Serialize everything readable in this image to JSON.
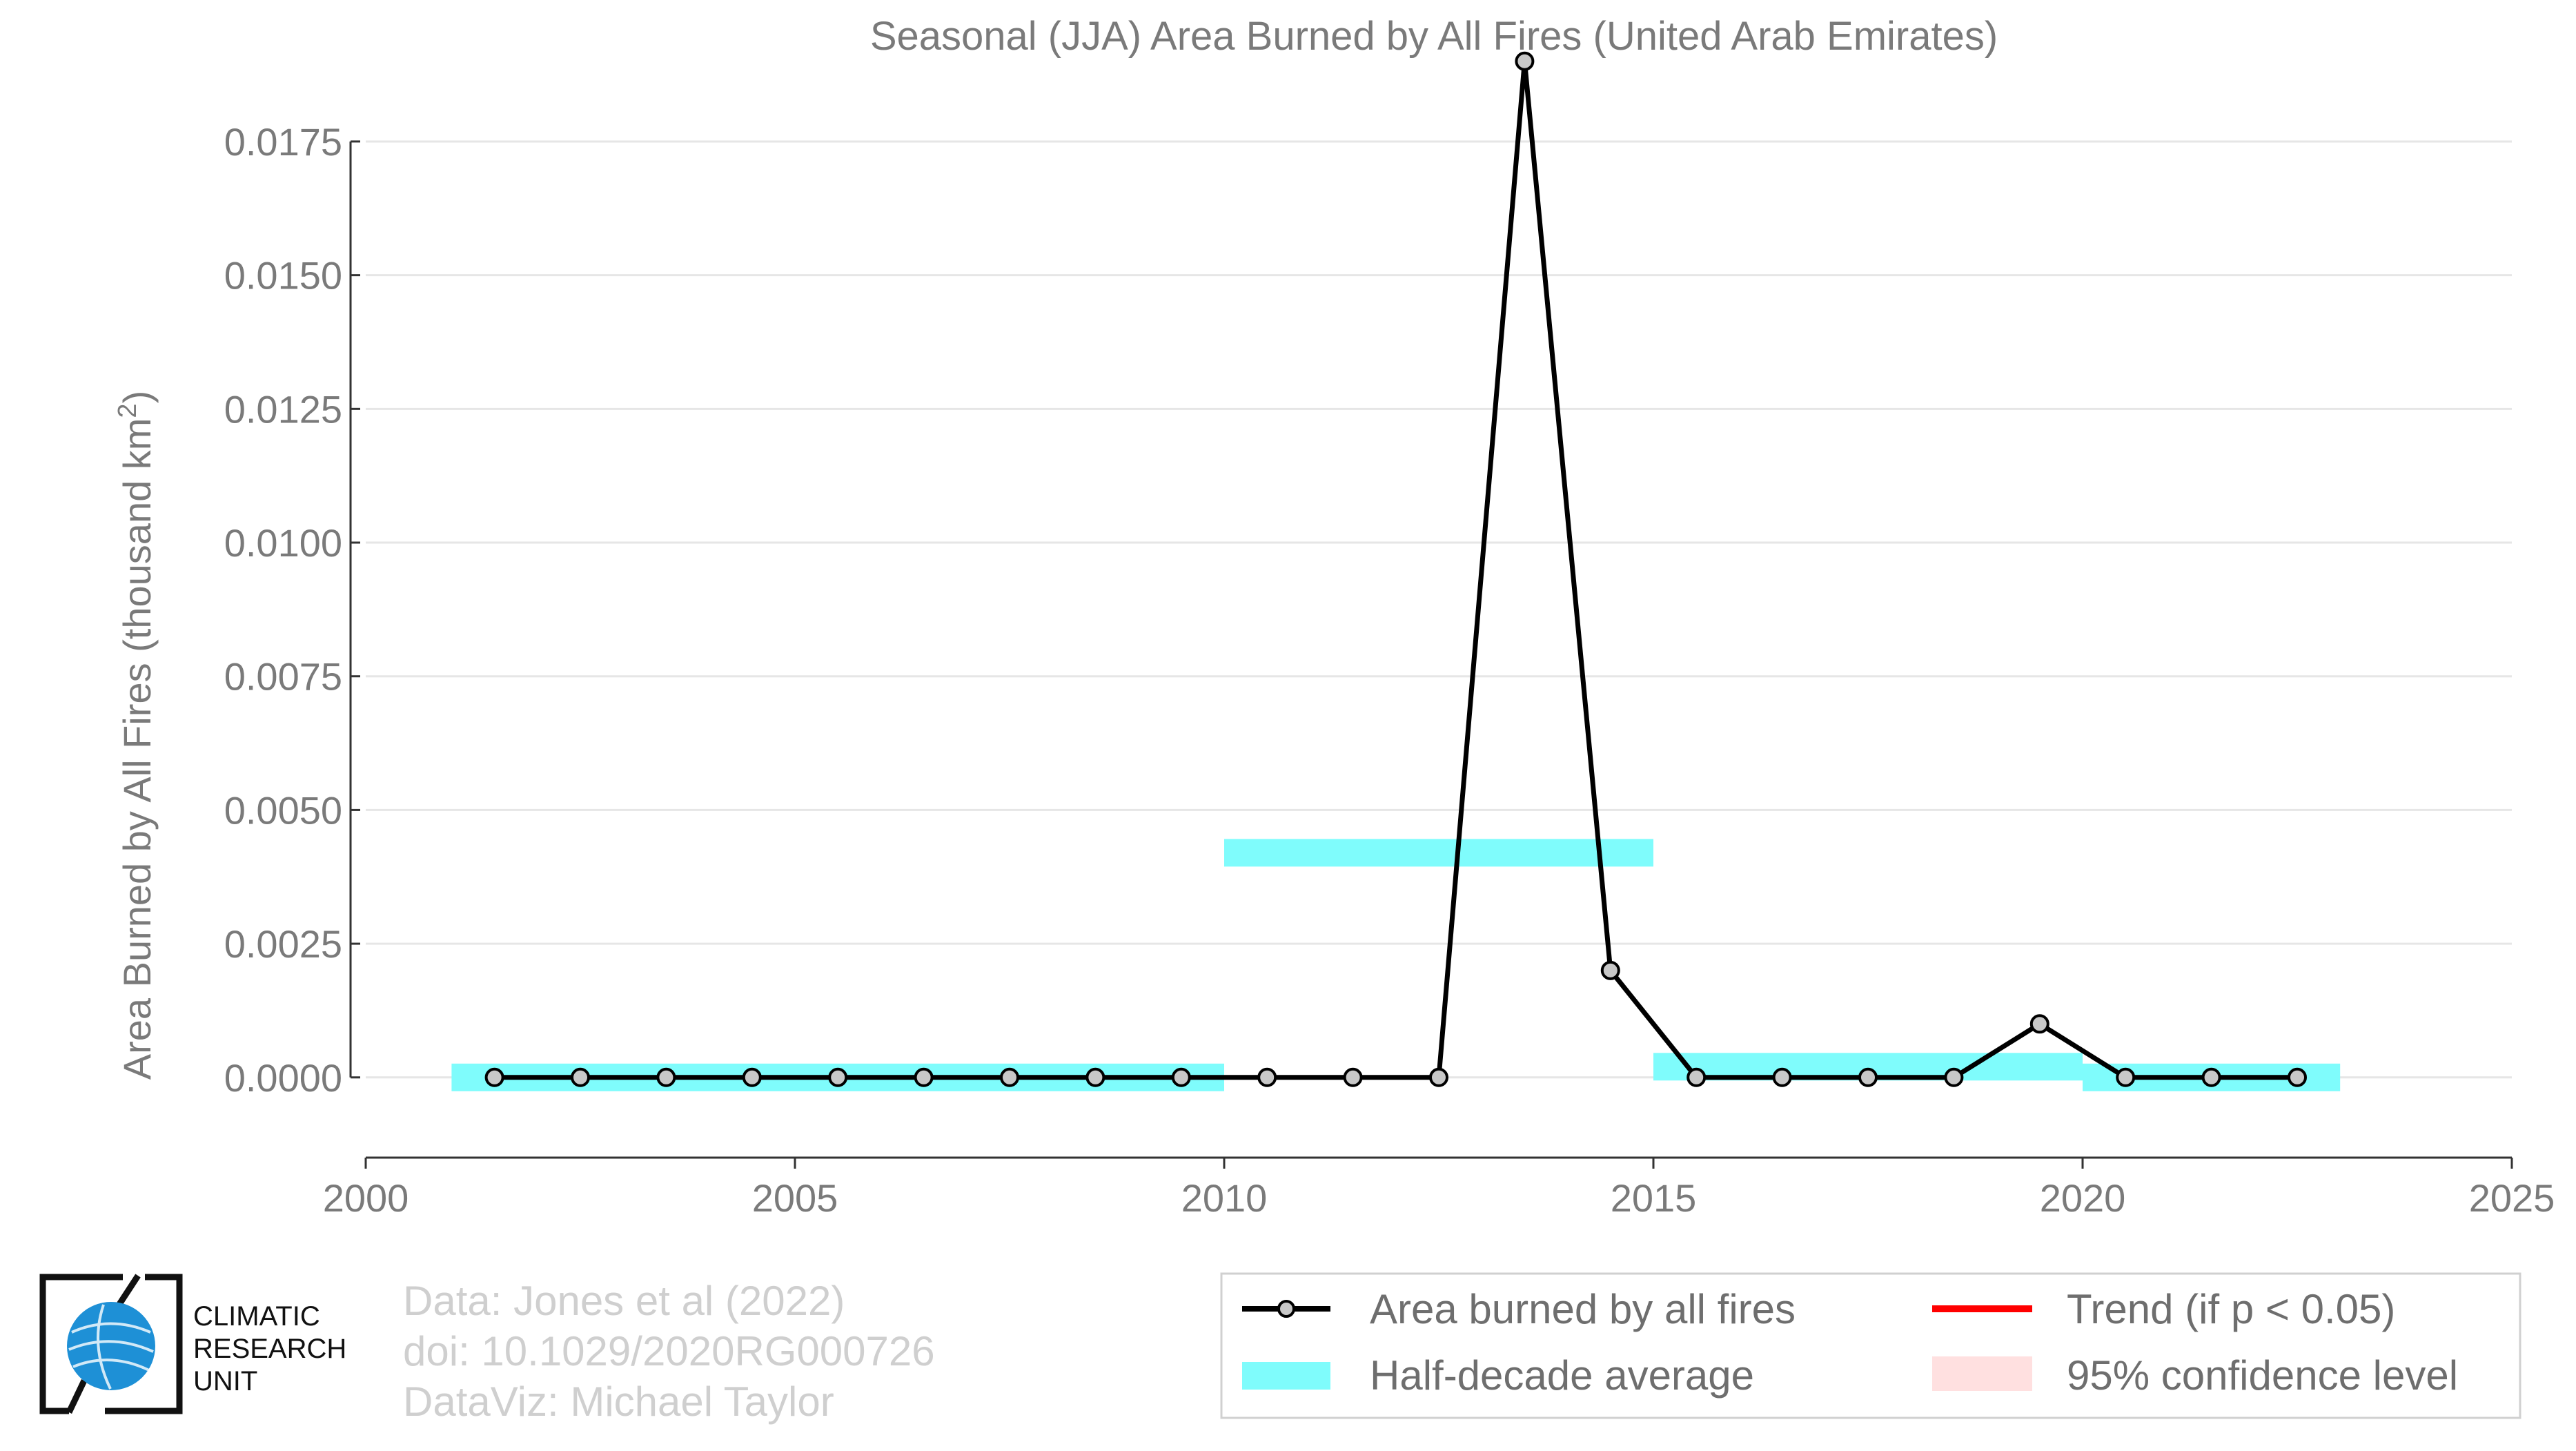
{
  "chart_data": {
    "type": "line",
    "title": "Seasonal (JJA) Area Burned by All Fires (United Arab Emirates)",
    "xlabel": "",
    "ylabel": "Area Burned by All Fires (thousand km",
    "ylabel_sup": "2",
    "ylabel_close": ")",
    "xlim": [
      2000,
      2025
    ],
    "ylim": [
      -0.0015,
      0.0195
    ],
    "x_ticks": [
      2000,
      2005,
      2010,
      2015,
      2020,
      2025
    ],
    "x_tick_labels": [
      "2000",
      "2005",
      "2010",
      "2015",
      "2020",
      "2025"
    ],
    "y_ticks": [
      0,
      0.0025,
      0.005,
      0.0075,
      0.01,
      0.0125,
      0.015,
      0.0175
    ],
    "y_tick_labels": [
      "0.0000",
      "0.0025",
      "0.0050",
      "0.0075",
      "0.0100",
      "0.0125",
      "0.0150",
      "0.0175"
    ],
    "grid": true,
    "series": [
      {
        "name": "Area burned by all fires",
        "color": "#000000",
        "x": [
          2001.5,
          2002.5,
          2003.5,
          2004.5,
          2005.5,
          2006.5,
          2007.5,
          2008.5,
          2009.5,
          2010.5,
          2011.5,
          2012.5,
          2013.5,
          2014.5,
          2015.5,
          2016.5,
          2017.5,
          2018.5,
          2019.5,
          2020.5,
          2021.5,
          2022.5
        ],
        "y": [
          0,
          0,
          0,
          0,
          0,
          0,
          0,
          0,
          0,
          0,
          0,
          0,
          0.019,
          0.002,
          0,
          0,
          0,
          0,
          0.001,
          0,
          0,
          0
        ]
      },
      {
        "name": "Half-decade average",
        "color": "#7ffcfc",
        "segments": [
          {
            "x_start": 2001,
            "x_end": 2010,
            "y": 0
          },
          {
            "x_start": 2010,
            "x_end": 2015,
            "y": 0.0042
          },
          {
            "x_start": 2015,
            "x_end": 2020,
            "y": 0.0002
          },
          {
            "x_start": 2020,
            "x_end": 2023,
            "y": 0
          }
        ]
      },
      {
        "name": "Trend (if p < 0.05)",
        "color": "#ff0000"
      },
      {
        "name": "95% confidence level",
        "color": "#ffe0e0"
      }
    ],
    "legend_position": "bottom-right"
  },
  "credits": {
    "line1": "Data: Jones et al (2022)",
    "line2": "doi: 10.1029/2020RG000726",
    "line3": "DataViz: Michael Taylor"
  },
  "logo": {
    "line1": "CLIMATIC",
    "line2": "RESEARCH",
    "line3": "UNIT",
    "globe_color": "#1e90d6"
  }
}
